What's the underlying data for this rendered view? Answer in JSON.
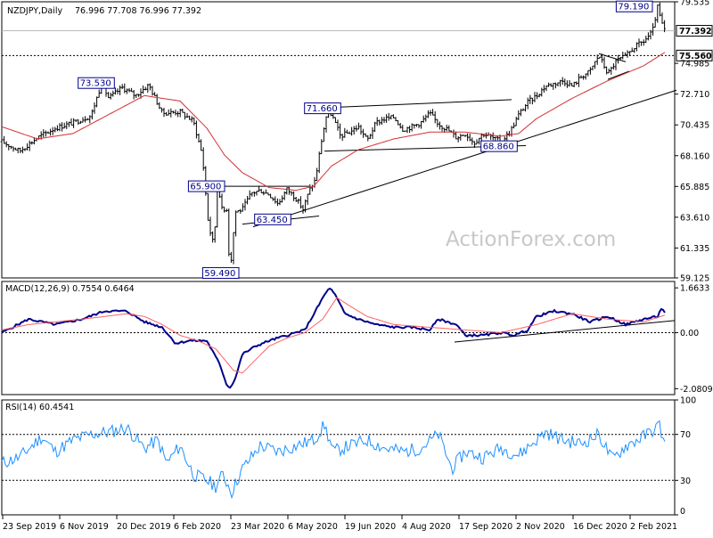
{
  "watermark": "ActionForex.com",
  "chart_data": [
    {
      "type": "line",
      "subtype": "ohlc",
      "title": "NZDJPY,Daily",
      "header_values": "76.996 77.708 76.996 77.392",
      "y_ticks": [
        "79.535",
        "74.985",
        "72.710",
        "70.435",
        "68.160",
        "65.885",
        "63.610",
        "61.335",
        "59.125"
      ],
      "ylim": [
        59.125,
        79.535
      ],
      "current_price_label": "77.392",
      "resistance_label": "75.560",
      "resistance_level": 75.56,
      "x_labels": [
        "23 Sep 2019",
        "6 Nov 2019",
        "20 Dec 2019",
        "6 Feb 2020",
        "23 Mar 2020",
        "6 May 2020",
        "19 Jun 2020",
        "4 Aug 2020",
        "17 Sep 2020",
        "2 Nov 2020",
        "16 Dec 2020",
        "2 Feb 2021"
      ],
      "series": [
        {
          "name": "",
          "color": "#000000",
          "anchors_x": [
            0,
            20,
            40,
            60,
            80,
            100,
            112,
            120,
            135,
            150,
            165,
            180,
            200,
            215,
            225,
            232,
            238,
            242,
            248,
            252,
            256,
            262,
            270,
            280,
            290,
            300,
            310,
            320,
            330,
            338,
            345,
            352,
            358,
            362,
            366,
            372,
            380,
            390,
            400,
            410,
            420,
            430,
            440,
            450,
            460,
            470,
            480,
            490,
            500,
            510,
            520,
            530,
            540,
            550,
            560,
            570,
            580,
            590,
            600,
            610,
            620,
            630,
            640,
            650,
            660,
            670,
            680,
            690,
            700,
            710,
            720,
            730,
            736,
            740,
            744
          ],
          "anchors_y": [
            69.2,
            68.5,
            69.5,
            70.2,
            70.6,
            71.1,
            73.53,
            72.4,
            73.2,
            72.6,
            73.4,
            71.3,
            71.4,
            70.7,
            68.2,
            63.0,
            61.5,
            66.3,
            63.8,
            64.5,
            59.49,
            64.0,
            64.2,
            65.4,
            65.6,
            65.3,
            64.6,
            65.7,
            65.0,
            64.2,
            65.6,
            66.4,
            69.0,
            70.4,
            71.66,
            70.9,
            69.6,
            69.9,
            70.3,
            69.3,
            70.6,
            70.9,
            71.0,
            70.1,
            70.3,
            70.6,
            71.3,
            70.5,
            70.1,
            69.5,
            69.8,
            69.1,
            69.8,
            69.5,
            69.2,
            69.9,
            71.2,
            72.1,
            72.6,
            73.3,
            73.5,
            73.7,
            73.3,
            74.0,
            74.4,
            75.6,
            74.2,
            75.2,
            75.5,
            76.2,
            76.6,
            77.3,
            79.19,
            78.0,
            77.4
          ]
        },
        {
          "name": "",
          "color": "#d43030",
          "anchors_x": [
            0,
            40,
            80,
            120,
            160,
            200,
            230,
            250,
            270,
            300,
            330,
            350,
            370,
            400,
            440,
            480,
            520,
            560,
            580,
            600,
            640,
            680,
            720,
            744
          ],
          "anchors_y": [
            70.3,
            69.4,
            69.8,
            71.2,
            72.6,
            72.2,
            70.2,
            68.2,
            66.9,
            65.8,
            65.6,
            65.9,
            67.4,
            68.6,
            69.4,
            69.9,
            69.9,
            69.6,
            69.8,
            70.9,
            72.4,
            73.7,
            74.8,
            75.8
          ]
        }
      ],
      "annotations": [
        {
          "label": "73.530",
          "x": 112,
          "y": 73.53
        },
        {
          "label": "71.660",
          "x": 366,
          "y": 71.66
        },
        {
          "label": "65.900",
          "x": 240,
          "y": 65.9
        },
        {
          "label": "63.450",
          "x": 310,
          "y": 63.45
        },
        {
          "label": "59.490",
          "x": 256,
          "y": 59.49
        },
        {
          "label": "68.860",
          "x": 552,
          "y": 68.86
        },
        {
          "label": "79.190",
          "x": 736,
          "y": 79.19
        }
      ]
    },
    {
      "type": "line",
      "title": "MACD(12,26,9) 0.7554 0.6464",
      "y_ticks": [
        "1.6633",
        "0.00",
        "-2.0809"
      ],
      "ylim": [
        -2.3,
        1.9
      ],
      "series": [
        {
          "name": "",
          "color": "#00008b",
          "anchors_x": [
            0,
            30,
            60,
            90,
            115,
            140,
            160,
            180,
            195,
            210,
            230,
            245,
            252,
            256,
            262,
            270,
            285,
            300,
            320,
            340,
            352,
            362,
            368,
            374,
            385,
            400,
            420,
            440,
            460,
            480,
            490,
            510,
            520,
            540,
            560,
            575,
            590,
            600,
            620,
            640,
            660,
            680,
            700,
            720,
            736,
            740,
            744
          ],
          "anchors_y": [
            0.0,
            0.5,
            0.3,
            0.5,
            0.8,
            0.8,
            0.4,
            0.2,
            -0.4,
            -0.3,
            -0.3,
            -1.2,
            -1.9,
            -2.05,
            -1.7,
            -0.8,
            -0.5,
            -0.3,
            -0.1,
            0.1,
            0.8,
            1.4,
            1.66,
            1.4,
            0.7,
            0.5,
            0.3,
            0.2,
            0.2,
            0.1,
            0.5,
            0.3,
            -0.1,
            -0.1,
            0.0,
            -0.1,
            0.1,
            0.6,
            0.8,
            0.7,
            0.4,
            0.6,
            0.3,
            0.5,
            0.6,
            0.9,
            0.76
          ]
        },
        {
          "name": "",
          "color": "#ff6060",
          "anchors_x": [
            0,
            30,
            60,
            90,
            115,
            140,
            160,
            180,
            200,
            220,
            240,
            260,
            270,
            285,
            300,
            320,
            340,
            360,
            376,
            390,
            410,
            440,
            480,
            520,
            560,
            600,
            640,
            680,
            720,
            744
          ],
          "anchors_y": [
            0.1,
            0.3,
            0.4,
            0.5,
            0.6,
            0.7,
            0.6,
            0.3,
            -0.1,
            -0.3,
            -0.6,
            -1.4,
            -1.5,
            -1.0,
            -0.5,
            -0.2,
            0.0,
            0.5,
            1.3,
            1.0,
            0.6,
            0.3,
            0.2,
            0.1,
            0.0,
            0.3,
            0.7,
            0.5,
            0.4,
            0.65
          ]
        }
      ]
    },
    {
      "type": "line",
      "title": "RSI(14) 60.4541",
      "y_ticks": [
        "100",
        "70",
        "30",
        "0"
      ],
      "ylim": [
        0,
        100
      ],
      "series": [
        {
          "name": "",
          "color": "#1e90ff",
          "anchors_x": [
            0,
            20,
            45,
            60,
            80,
            100,
            120,
            140,
            160,
            175,
            185,
            200,
            215,
            230,
            240,
            248,
            258,
            270,
            290,
            310,
            330,
            350,
            362,
            372,
            390,
            410,
            430,
            450,
            470,
            490,
            505,
            520,
            540,
            560,
            580,
            595,
            610,
            630,
            650,
            670,
            685,
            700,
            720,
            738,
            744
          ],
          "anchors_y": [
            45,
            50,
            68,
            55,
            65,
            70,
            72,
            76,
            58,
            65,
            45,
            60,
            35,
            30,
            25,
            35,
            20,
            40,
            60,
            55,
            60,
            65,
            78,
            55,
            60,
            65,
            58,
            55,
            58,
            70,
            40,
            55,
            50,
            58,
            52,
            62,
            72,
            65,
            62,
            70,
            48,
            60,
            68,
            78,
            60
          ]
        }
      ]
    }
  ]
}
